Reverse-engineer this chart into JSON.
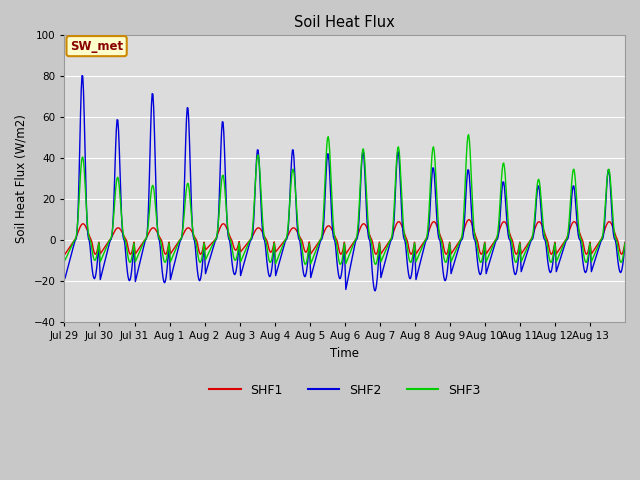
{
  "title": "Soil Heat Flux",
  "ylabel": "Soil Heat Flux (W/m2)",
  "xlabel": "Time",
  "ylim": [
    -40,
    100
  ],
  "yticks": [
    -40,
    -20,
    0,
    20,
    40,
    60,
    80,
    100
  ],
  "legend_label": "SW_met",
  "lines": [
    "SHF1",
    "SHF2",
    "SHF3"
  ],
  "line_colors": [
    "#dd0000",
    "#0000dd",
    "#00cc00"
  ],
  "xtick_labels": [
    "Jul 29",
    "Jul 30",
    "Jul 31",
    "Aug 1",
    "Aug 2",
    "Aug 3",
    "Aug 4",
    "Aug 5",
    "Aug 6",
    "Aug 7",
    "Aug 8",
    "Aug 9",
    "Aug 10",
    "Aug 11",
    "Aug 12",
    "Aug 13"
  ],
  "fig_bg": "#c8c8c8",
  "plot_bg": "#dcdcdc",
  "grid_color": "#ffffff",
  "shf1_daily_peaks": [
    8,
    6,
    6,
    6,
    8,
    6,
    6,
    7,
    8,
    9,
    9,
    10,
    9,
    9,
    9,
    9
  ],
  "shf2_daily_peaks": [
    82,
    60,
    73,
    66,
    59,
    45,
    45,
    43,
    44,
    44,
    36,
    35,
    29,
    27,
    27,
    35
  ],
  "shf3_daily_peaks": [
    41,
    31,
    27,
    28,
    32,
    42,
    35,
    51,
    45,
    46,
    46,
    52,
    38,
    30,
    35,
    35
  ],
  "shf1_daily_mins": [
    -7,
    -7,
    -7,
    -7,
    -5,
    -6,
    -6,
    -7,
    -7,
    -7,
    -7,
    -7,
    -7,
    -7,
    -7,
    -7
  ],
  "shf2_daily_mins": [
    -19,
    -20,
    -21,
    -20,
    -17,
    -18,
    -18,
    -19,
    -25,
    -19,
    -20,
    -17,
    -17,
    -16,
    -16,
    -16
  ],
  "shf3_daily_mins": [
    -10,
    -11,
    -11,
    -11,
    -10,
    -11,
    -12,
    -12,
    -12,
    -11,
    -11,
    -11,
    -11,
    -11,
    -11,
    -11
  ]
}
